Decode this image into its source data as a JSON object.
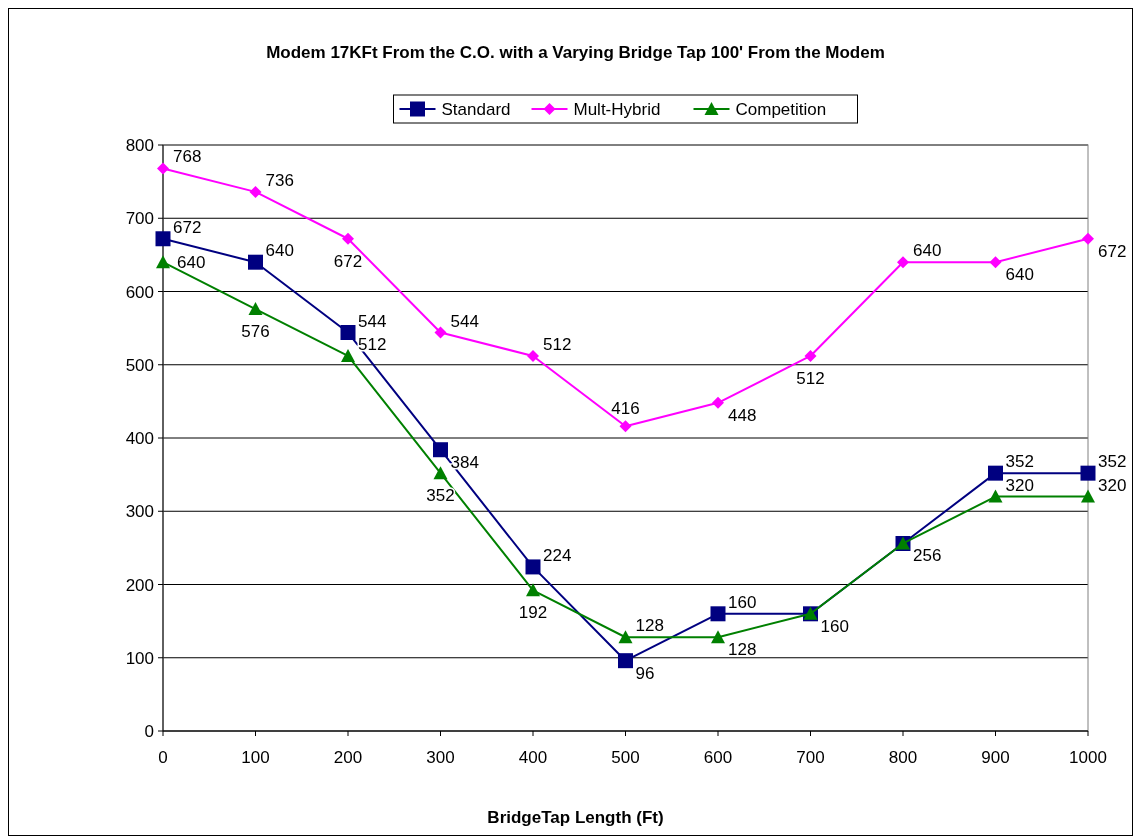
{
  "chart_data": {
    "type": "line",
    "title": "Modem 17KFt From the C.O. with a Varying Bridge Tap 100' From the Modem",
    "xlabel": "BridgeTap Length (Ft)",
    "x": [
      0,
      100,
      200,
      300,
      400,
      500,
      600,
      700,
      800,
      900,
      1000
    ],
    "xlim": [
      0,
      1000
    ],
    "xticks": [
      0,
      100,
      200,
      300,
      400,
      500,
      600,
      700,
      800,
      900,
      1000
    ],
    "ylim": [
      0,
      800
    ],
    "yticks": [
      0,
      100,
      200,
      300,
      400,
      500,
      600,
      700,
      800
    ],
    "grid": "y",
    "legend": "top",
    "series": [
      {
        "name": "Standard",
        "color": "#000080",
        "marker": "square",
        "values": [
          672,
          640,
          544,
          384,
          224,
          96,
          160,
          160,
          256,
          352,
          352
        ],
        "value_labels": [
          "672",
          "640",
          "544",
          "384",
          "224",
          "96",
          "160",
          null,
          "256",
          "352",
          "352"
        ]
      },
      {
        "name": "Mult-Hybrid",
        "color": "#ff00ff",
        "marker": "diamond",
        "values": [
          768,
          736,
          672,
          544,
          512,
          416,
          448,
          512,
          640,
          640,
          672
        ],
        "value_labels": [
          "768",
          "736",
          "672",
          "544",
          "512",
          "416",
          "448",
          "512",
          "640",
          "640",
          "672"
        ]
      },
      {
        "name": "Competition",
        "color": "#008000",
        "marker": "triangle",
        "values": [
          640,
          576,
          512,
          352,
          192,
          128,
          128,
          160,
          256,
          320,
          320
        ],
        "value_labels": [
          "640",
          "576",
          "512",
          "352",
          "192",
          "128",
          "128",
          "160",
          null,
          "320",
          "320"
        ]
      }
    ]
  }
}
